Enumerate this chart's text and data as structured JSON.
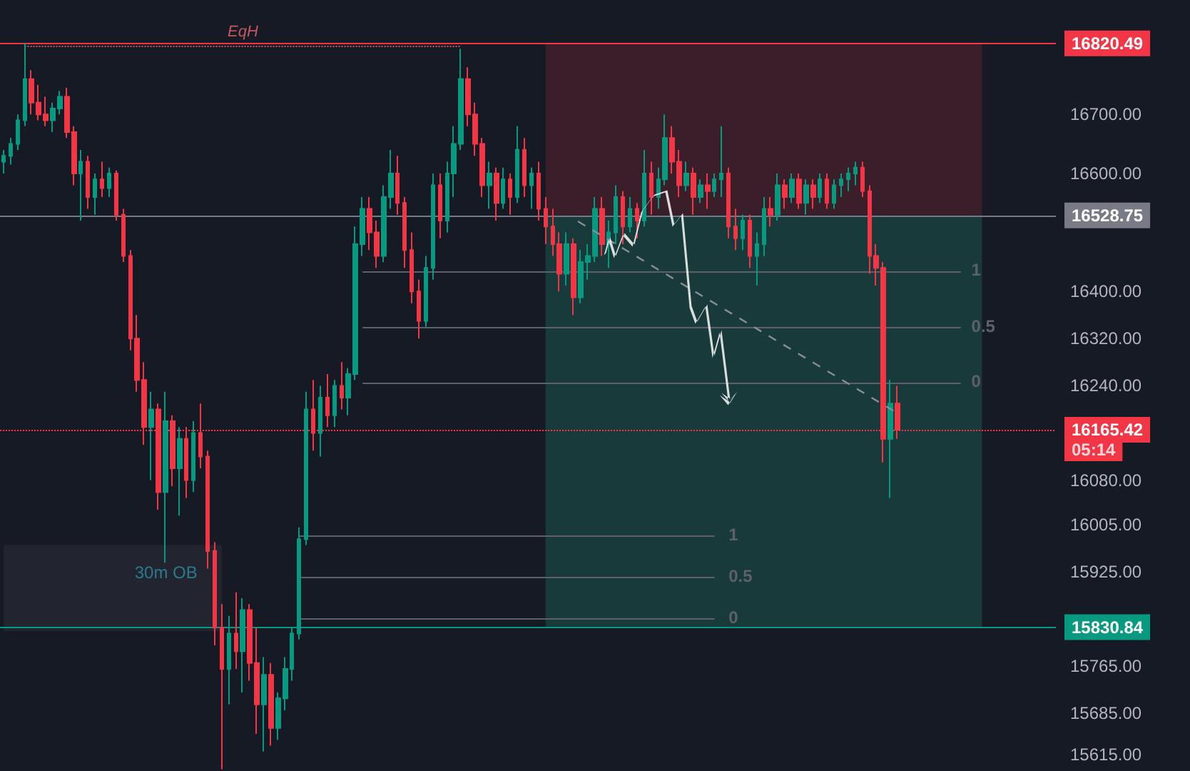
{
  "chart_data": {
    "type": "candlestick",
    "categories": [
      null,
      null,
      null,
      null,
      null,
      null,
      null,
      null,
      null,
      null,
      null,
      null,
      null,
      null,
      null,
      null,
      null,
      null,
      null,
      null,
      null,
      null,
      null,
      null,
      null,
      null,
      null,
      null,
      null,
      null,
      null,
      null,
      null,
      null,
      null,
      null,
      null,
      null,
      null,
      null,
      null,
      null,
      null,
      null,
      null,
      null,
      null,
      null,
      null,
      null,
      null,
      null,
      null,
      null,
      null,
      null,
      null,
      null,
      null,
      null,
      null,
      null,
      null,
      null,
      null,
      null,
      null,
      null,
      null,
      null,
      null,
      null,
      null,
      null,
      null,
      null,
      null,
      null,
      null,
      null,
      null,
      null,
      null,
      null,
      null,
      null,
      null,
      null,
      null,
      null,
      null,
      null,
      null,
      null,
      null,
      null,
      null,
      null,
      null,
      null,
      null,
      null,
      null,
      null,
      null,
      null,
      null,
      null,
      null,
      null,
      null,
      null,
      null,
      null,
      null,
      null,
      null,
      null,
      null,
      null,
      null,
      null,
      null,
      null,
      null,
      null,
      null,
      null,
      null,
      null,
      null,
      null,
      null,
      null,
      null,
      null,
      null,
      null,
      null,
      null,
      null,
      null,
      null,
      null,
      null,
      null,
      null,
      null,
      null,
      null
    ],
    "ohlc": [
      [
        16620,
        16640,
        16600,
        16630
      ],
      [
        16630,
        16660,
        16615,
        16650
      ],
      [
        16650,
        16700,
        16640,
        16690
      ],
      [
        16690,
        16821,
        16680,
        16760
      ],
      [
        16760,
        16775,
        16700,
        16720
      ],
      [
        16720,
        16750,
        16690,
        16700
      ],
      [
        16700,
        16730,
        16680,
        16690
      ],
      [
        16690,
        16720,
        16670,
        16710
      ],
      [
        16710,
        16740,
        16700,
        16730
      ],
      [
        16730,
        16745,
        16660,
        16670
      ],
      [
        16670,
        16680,
        16580,
        16600
      ],
      [
        16600,
        16640,
        16520,
        16620
      ],
      [
        16620,
        16630,
        16540,
        16560
      ],
      [
        16560,
        16600,
        16530,
        16590
      ],
      [
        16590,
        16620,
        16560,
        16575
      ],
      [
        16575,
        16610,
        16560,
        16600
      ],
      [
        16600,
        16605,
        16520,
        16530
      ],
      [
        16530,
        16540,
        16450,
        16460
      ],
      [
        16460,
        16470,
        16300,
        16320
      ],
      [
        16320,
        16360,
        16230,
        16250
      ],
      [
        16250,
        16280,
        16140,
        16170
      ],
      [
        16170,
        16230,
        16080,
        16200
      ],
      [
        16200,
        16210,
        16030,
        16060
      ],
      [
        16060,
        16230,
        15940,
        16180
      ],
      [
        16180,
        16190,
        16070,
        16100
      ],
      [
        16100,
        16170,
        16020,
        16150
      ],
      [
        16150,
        16170,
        16050,
        16080
      ],
      [
        16080,
        16180,
        16060,
        16160
      ],
      [
        16160,
        16210,
        16100,
        16120
      ],
      [
        16120,
        16130,
        15930,
        15960
      ],
      [
        15960,
        15975,
        15800,
        15830
      ],
      [
        15830,
        15870,
        15590,
        15760
      ],
      [
        15760,
        15850,
        15700,
        15820
      ],
      [
        15820,
        15890,
        15760,
        15790
      ],
      [
        15790,
        15880,
        15720,
        15860
      ],
      [
        15860,
        15870,
        15740,
        15770
      ],
      [
        15770,
        15830,
        15650,
        15700
      ],
      [
        15700,
        15780,
        15620,
        15750
      ],
      [
        15750,
        15770,
        15630,
        15660
      ],
      [
        15660,
        15720,
        15640,
        15710
      ],
      [
        15710,
        15780,
        15690,
        15760
      ],
      [
        15760,
        15830,
        15740,
        15820
      ],
      [
        15820,
        16000,
        15810,
        15980
      ],
      [
        15980,
        16230,
        15970,
        16200
      ],
      [
        16200,
        16250,
        16130,
        16160
      ],
      [
        16160,
        16240,
        16120,
        16220
      ],
      [
        16220,
        16260,
        16170,
        16190
      ],
      [
        16190,
        16250,
        16170,
        16240
      ],
      [
        16240,
        16280,
        16200,
        16220
      ],
      [
        16220,
        16270,
        16190,
        16260
      ],
      [
        16260,
        16510,
        16250,
        16480
      ],
      [
        16480,
        16560,
        16460,
        16540
      ],
      [
        16540,
        16560,
        16470,
        16500
      ],
      [
        16500,
        16520,
        16440,
        16460
      ],
      [
        16460,
        16580,
        16450,
        16560
      ],
      [
        16560,
        16640,
        16540,
        16600
      ],
      [
        16600,
        16630,
        16530,
        16550
      ],
      [
        16550,
        16560,
        16440,
        16470
      ],
      [
        16470,
        16500,
        16380,
        16400
      ],
      [
        16400,
        16420,
        16320,
        16350
      ],
      [
        16350,
        16460,
        16340,
        16440
      ],
      [
        16440,
        16600,
        16420,
        16580
      ],
      [
        16580,
        16600,
        16490,
        16520
      ],
      [
        16520,
        16620,
        16500,
        16600
      ],
      [
        16600,
        16680,
        16560,
        16650
      ],
      [
        16650,
        16811,
        16640,
        16760
      ],
      [
        16760,
        16780,
        16680,
        16700
      ],
      [
        16700,
        16720,
        16630,
        16650
      ],
      [
        16650,
        16660,
        16560,
        16580
      ],
      [
        16580,
        16620,
        16540,
        16600
      ],
      [
        16600,
        16610,
        16520,
        16550
      ],
      [
        16550,
        16610,
        16540,
        16590
      ],
      [
        16590,
        16600,
        16530,
        16560
      ],
      [
        16560,
        16680,
        16550,
        16640
      ],
      [
        16640,
        16660,
        16560,
        16580
      ],
      [
        16580,
        16610,
        16540,
        16600
      ],
      [
        16600,
        16620,
        16520,
        16540
      ],
      [
        16540,
        16560,
        16480,
        16510
      ],
      [
        16510,
        16540,
        16460,
        16480
      ],
      [
        16480,
        16500,
        16400,
        16430
      ],
      [
        16430,
        16500,
        16410,
        16480
      ],
      [
        16480,
        16490,
        16360,
        16390
      ],
      [
        16390,
        16470,
        16380,
        16450
      ],
      [
        16450,
        16480,
        16420,
        16460
      ],
      [
        16460,
        16560,
        16450,
        16540
      ],
      [
        16540,
        16560,
        16460,
        16480
      ],
      [
        16480,
        16520,
        16440,
        16500
      ],
      [
        16500,
        16580,
        16480,
        16560
      ],
      [
        16560,
        16570,
        16480,
        16510
      ],
      [
        16510,
        16560,
        16500,
        16540
      ],
      [
        16540,
        16550,
        16490,
        16520
      ],
      [
        16520,
        16640,
        16510,
        16600
      ],
      [
        16600,
        16620,
        16530,
        16560
      ],
      [
        16560,
        16610,
        16540,
        16590
      ],
      [
        16590,
        16700,
        16580,
        16660
      ],
      [
        16660,
        16680,
        16600,
        16620
      ],
      [
        16620,
        16640,
        16560,
        16580
      ],
      [
        16580,
        16620,
        16570,
        16600
      ],
      [
        16600,
        16610,
        16530,
        16560
      ],
      [
        16560,
        16590,
        16550,
        16580
      ],
      [
        16580,
        16600,
        16540,
        16570
      ],
      [
        16570,
        16600,
        16560,
        16590
      ],
      [
        16590,
        16680,
        16560,
        16600
      ],
      [
        16600,
        16610,
        16490,
        16510
      ],
      [
        16510,
        16540,
        16470,
        16490
      ],
      [
        16490,
        16530,
        16470,
        16520
      ],
      [
        16520,
        16530,
        16440,
        16460
      ],
      [
        16460,
        16500,
        16410,
        16480
      ],
      [
        16480,
        16560,
        16460,
        16540
      ],
      [
        16540,
        16560,
        16510,
        16530
      ],
      [
        16530,
        16600,
        16520,
        16580
      ],
      [
        16580,
        16590,
        16540,
        16560
      ],
      [
        16560,
        16600,
        16550,
        16590
      ],
      [
        16590,
        16600,
        16540,
        16550
      ],
      [
        16550,
        16590,
        16530,
        16580
      ],
      [
        16580,
        16590,
        16540,
        16560
      ],
      [
        16560,
        16600,
        16550,
        16590
      ],
      [
        16590,
        16600,
        16540,
        16550
      ],
      [
        16550,
        16590,
        16540,
        16580
      ],
      [
        16580,
        16600,
        16560,
        16590
      ],
      [
        16590,
        16610,
        16570,
        16600
      ],
      [
        16600,
        16620,
        16580,
        16610
      ],
      [
        16610,
        16620,
        16560,
        16570
      ],
      [
        16570,
        16580,
        16430,
        16460
      ],
      [
        16460,
        16480,
        16410,
        16440
      ],
      [
        16440,
        16450,
        16110,
        16150
      ],
      [
        16150,
        16250,
        16050,
        16210
      ],
      [
        16210,
        16240,
        16150,
        16165.42
      ],
      null,
      null,
      null,
      null,
      null,
      null,
      null,
      null,
      null,
      null,
      null,
      null,
      null,
      null,
      null,
      null,
      null,
      null,
      null,
      null,
      null,
      null
    ],
    "ylim": [
      15587,
      16894
    ],
    "yticks": [
      {
        "value": 15615,
        "label": "15615.00"
      },
      {
        "value": 15685,
        "label": "15685.00"
      },
      {
        "value": 15765,
        "label": "15765.00"
      },
      {
        "value": 15925,
        "label": "15925.00"
      },
      {
        "value": 16005,
        "label": "16005.00"
      },
      {
        "value": 16080,
        "label": "16080.00"
      },
      {
        "value": 16240,
        "label": "16240.00"
      },
      {
        "value": 16320,
        "label": "16320.00"
      },
      {
        "value": 16400,
        "label": "16400.00"
      },
      {
        "value": 16600,
        "label": "16600.00"
      },
      {
        "value": 16700,
        "label": "16700.00"
      }
    ],
    "grid": false,
    "ref_lines": [
      {
        "axis": "y",
        "value": 16820.49,
        "label": "16820.49",
        "color": "#f23645"
      },
      {
        "axis": "y",
        "value": 16528.75,
        "label": "16528.75",
        "color": "#787b86"
      },
      {
        "axis": "y",
        "value": 16165.42,
        "label": "16165.42",
        "color": "#f23645",
        "line_style": "dotted"
      },
      {
        "axis": "y",
        "value": 15830.84,
        "label": "15830.84",
        "color": "#089981"
      },
      {
        "axis": "y",
        "value": 16434,
        "color": "#5d606b"
      },
      {
        "axis": "y",
        "value": 16338,
        "color": "#5d606b"
      },
      {
        "axis": "y",
        "value": 16245,
        "color": "#5d606b"
      },
      {
        "axis": "y",
        "value": 15985,
        "color": "#5d606b"
      },
      {
        "axis": "y",
        "value": 15915,
        "color": "#5d606b"
      },
      {
        "axis": "y",
        "value": 15845,
        "color": "#5d606b"
      },
      {
        "axis": "y",
        "value": 16816,
        "label": "EqH",
        "color": "#c7575e",
        "line_style": "dotted"
      }
    ],
    "bands": [
      {
        "axis": "y",
        "from": 16528.75,
        "to": 16820.49,
        "color": "#3a1f2b"
      },
      {
        "axis": "y",
        "from": 15830.84,
        "to": 16528.75,
        "color": "#183a3a"
      },
      {
        "axis": "y",
        "from": 15824,
        "to": 15970,
        "label": "30m OB",
        "color": "#22252f"
      }
    ],
    "annotations": [
      "05:14",
      "1",
      "0.5",
      "0",
      "1",
      "0.5",
      "0"
    ]
  }
}
